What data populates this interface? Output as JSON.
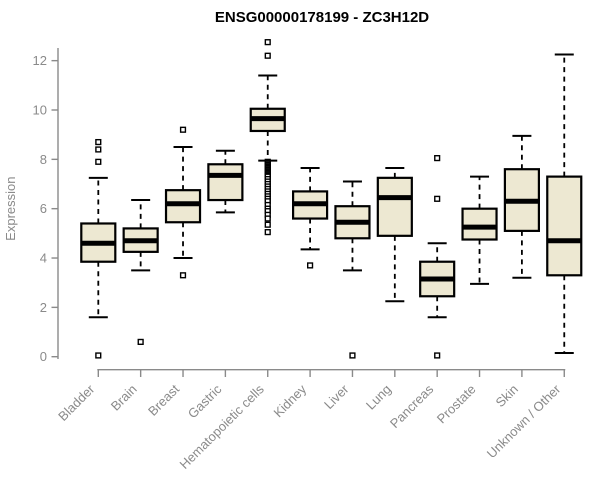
{
  "colors": {
    "box_fill": "#ede8d2",
    "box_stroke": "#000000",
    "median_color": "#000000",
    "outlier_fill": "#ffffff",
    "axis_color": "#8a8a8a",
    "title_color": "#000000"
  },
  "chart_data": {
    "type": "boxplot",
    "title": "ENSG00000178199 - ZC3H12D",
    "xlabel": "",
    "ylabel": "Expression",
    "ylim": [
      0,
      12
    ],
    "yticks": [
      0,
      2,
      4,
      6,
      8,
      10,
      12
    ],
    "grid": false,
    "legend": false,
    "categories": [
      "Bladder",
      "Brain",
      "Breast",
      "Gastric",
      "Hematopoietic cells",
      "Kidney",
      "Liver",
      "Lung",
      "Pancreas",
      "Prostate",
      "Skin",
      "Unknown / Other"
    ],
    "series": [
      {
        "category": "Bladder",
        "whisker_low": 1.6,
        "q1": 3.85,
        "median": 4.6,
        "q3": 5.4,
        "whisker_high": 7.25,
        "outliers": [
          8.7,
          8.4,
          7.9,
          0.05
        ]
      },
      {
        "category": "Brain",
        "whisker_low": 3.5,
        "q1": 4.25,
        "median": 4.7,
        "q3": 5.2,
        "whisker_high": 6.35,
        "outliers": [
          0.6
        ]
      },
      {
        "category": "Breast",
        "whisker_low": 4.0,
        "q1": 5.45,
        "median": 6.2,
        "q3": 6.75,
        "whisker_high": 8.5,
        "outliers": [
          9.2,
          3.3
        ]
      },
      {
        "category": "Gastric",
        "whisker_low": 5.85,
        "q1": 6.35,
        "median": 7.35,
        "q3": 7.8,
        "whisker_high": 8.35,
        "outliers": []
      },
      {
        "category": "Hematopoietic cells",
        "whisker_low": 7.95,
        "q1": 9.15,
        "median": 9.65,
        "q3": 10.05,
        "whisker_high": 11.4,
        "outliers": [
          12.75,
          12.2,
          7.9,
          7.85,
          7.8,
          7.75,
          7.7,
          7.65,
          7.6,
          7.55,
          7.5,
          7.45,
          7.4,
          7.35,
          7.3,
          7.2,
          7.1,
          7.0,
          6.9,
          6.8,
          6.7,
          6.6,
          6.5,
          6.4,
          6.3,
          6.15,
          6.0,
          5.9,
          5.75,
          5.6,
          5.35,
          5.05
        ]
      },
      {
        "category": "Kidney",
        "whisker_low": 4.35,
        "q1": 5.6,
        "median": 6.2,
        "q3": 6.7,
        "whisker_high": 7.65,
        "outliers": [
          3.7
        ]
      },
      {
        "category": "Liver",
        "whisker_low": 3.5,
        "q1": 4.8,
        "median": 5.45,
        "q3": 6.1,
        "whisker_high": 7.1,
        "outliers": [
          0.05
        ]
      },
      {
        "category": "Lung",
        "whisker_low": 2.25,
        "q1": 4.9,
        "median": 6.45,
        "q3": 7.25,
        "whisker_high": 7.65,
        "outliers": []
      },
      {
        "category": "Pancreas",
        "whisker_low": 1.6,
        "q1": 2.45,
        "median": 3.15,
        "q3": 3.85,
        "whisker_high": 4.6,
        "outliers": [
          8.05,
          6.4,
          0.05
        ]
      },
      {
        "category": "Prostate",
        "whisker_low": 2.95,
        "q1": 4.75,
        "median": 5.25,
        "q3": 6.0,
        "whisker_high": 7.3,
        "outliers": []
      },
      {
        "category": "Skin",
        "whisker_low": 3.2,
        "q1": 5.1,
        "median": 6.3,
        "q3": 7.6,
        "whisker_high": 8.95,
        "outliers": []
      },
      {
        "category": "Unknown / Other",
        "whisker_low": 0.15,
        "q1": 3.3,
        "median": 4.7,
        "q3": 7.3,
        "whisker_high": 12.25,
        "outliers": []
      }
    ]
  }
}
